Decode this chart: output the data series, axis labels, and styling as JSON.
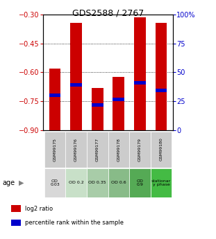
{
  "title": "GDS2588 / 2767",
  "samples": [
    "GSM99175",
    "GSM99176",
    "GSM99177",
    "GSM99178",
    "GSM99179",
    "GSM99180"
  ],
  "bar_tops": [
    -0.58,
    -0.345,
    -0.68,
    -0.625,
    -0.315,
    -0.345
  ],
  "bar_bottoms": [
    -0.9,
    -0.9,
    -0.9,
    -0.9,
    -0.9,
    -0.9
  ],
  "percentile_values": [
    -0.72,
    -0.665,
    -0.77,
    -0.74,
    -0.655,
    -0.695
  ],
  "left_ylim": [
    -0.9,
    -0.3
  ],
  "left_yticks": [
    -0.9,
    -0.75,
    -0.6,
    -0.45,
    -0.3
  ],
  "right_ylim": [
    0,
    100
  ],
  "right_yticks": [
    0,
    25,
    50,
    75,
    100
  ],
  "right_yticklabels": [
    "0",
    "25",
    "50",
    "75",
    "100%"
  ],
  "bar_color": "#cc0000",
  "percentile_color": "#0000cc",
  "age_labels": [
    "OD\n0.03",
    "OD 0.2",
    "OD 0.35",
    "OD 0.6",
    "OD\n0.9",
    "stationar\ny phase"
  ],
  "age_bg_colors": [
    "#d8d8d8",
    "#c8e0c8",
    "#a8cca8",
    "#88bb88",
    "#55aa55",
    "#44bb44"
  ],
  "sample_bg_color": "#cccccc",
  "grid_color": "black",
  "left_tick_color": "#cc0000",
  "right_tick_color": "#0000cc",
  "bar_width": 0.55,
  "legend_items": [
    {
      "label": "log2 ratio",
      "color": "#cc0000"
    },
    {
      "label": "percentile rank within the sample",
      "color": "#0000cc"
    }
  ]
}
